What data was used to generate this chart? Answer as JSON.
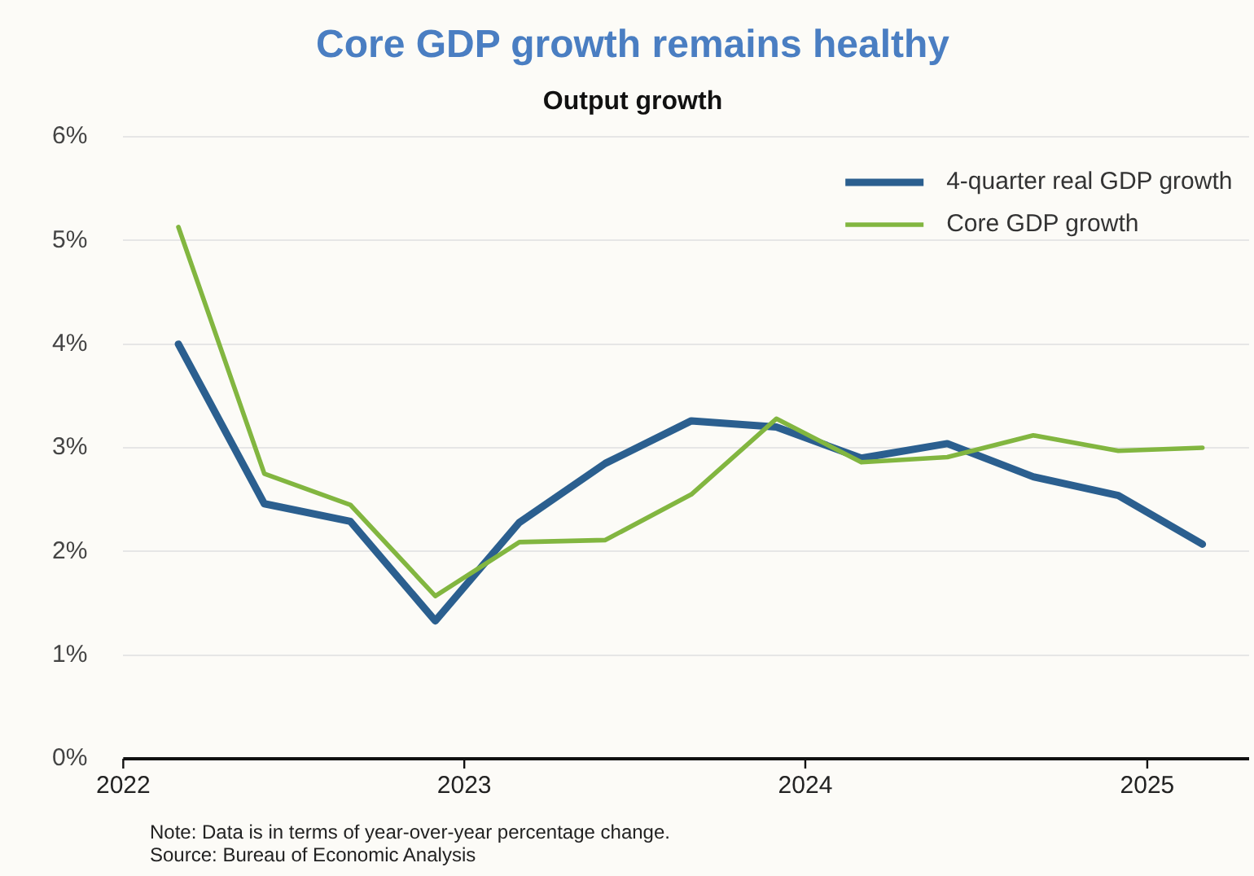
{
  "chart_data": {
    "type": "line",
    "title": "Core GDP growth remains healthy",
    "subtitle": "Output growth",
    "x": [
      "2022-03",
      "2022-06",
      "2022-09",
      "2022-12",
      "2023-03",
      "2023-06",
      "2023-09",
      "2023-12",
      "2024-03",
      "2024-06",
      "2024-09",
      "2024-12",
      "2025-03"
    ],
    "series": [
      {
        "name": "4-quarter real GDP growth",
        "color": "#2b5f8f",
        "values": [
          4.0,
          2.46,
          2.29,
          1.33,
          2.28,
          2.85,
          3.26,
          3.2,
          2.9,
          3.04,
          2.72,
          2.54,
          2.07
        ]
      },
      {
        "name": "Core GDP growth",
        "color": "#82b640",
        "values": [
          5.13,
          2.75,
          2.45,
          1.57,
          2.09,
          2.11,
          2.55,
          3.28,
          2.86,
          2.91,
          3.12,
          2.97,
          3.0
        ]
      }
    ],
    "xlim": [
      "2022-01",
      "2025-04-20"
    ],
    "xticks": [
      "2022",
      "2023",
      "2024",
      "2025"
    ],
    "ylim": [
      0,
      6
    ],
    "yticks": [
      {
        "value": 0,
        "label": "0%"
      },
      {
        "value": 1,
        "label": "1%"
      },
      {
        "value": 2,
        "label": "2%"
      },
      {
        "value": 3,
        "label": "3%"
      },
      {
        "value": 4,
        "label": "4%"
      },
      {
        "value": 5,
        "label": "5%"
      },
      {
        "value": 6,
        "label": "6%"
      }
    ],
    "grid": "y",
    "legend": "top right",
    "marker": "none",
    "line_style": "solid",
    "annotations": [
      "Note: Data is in terms of year-over-year percentage change.",
      "Source: Bureau of Economic Analysis"
    ]
  }
}
